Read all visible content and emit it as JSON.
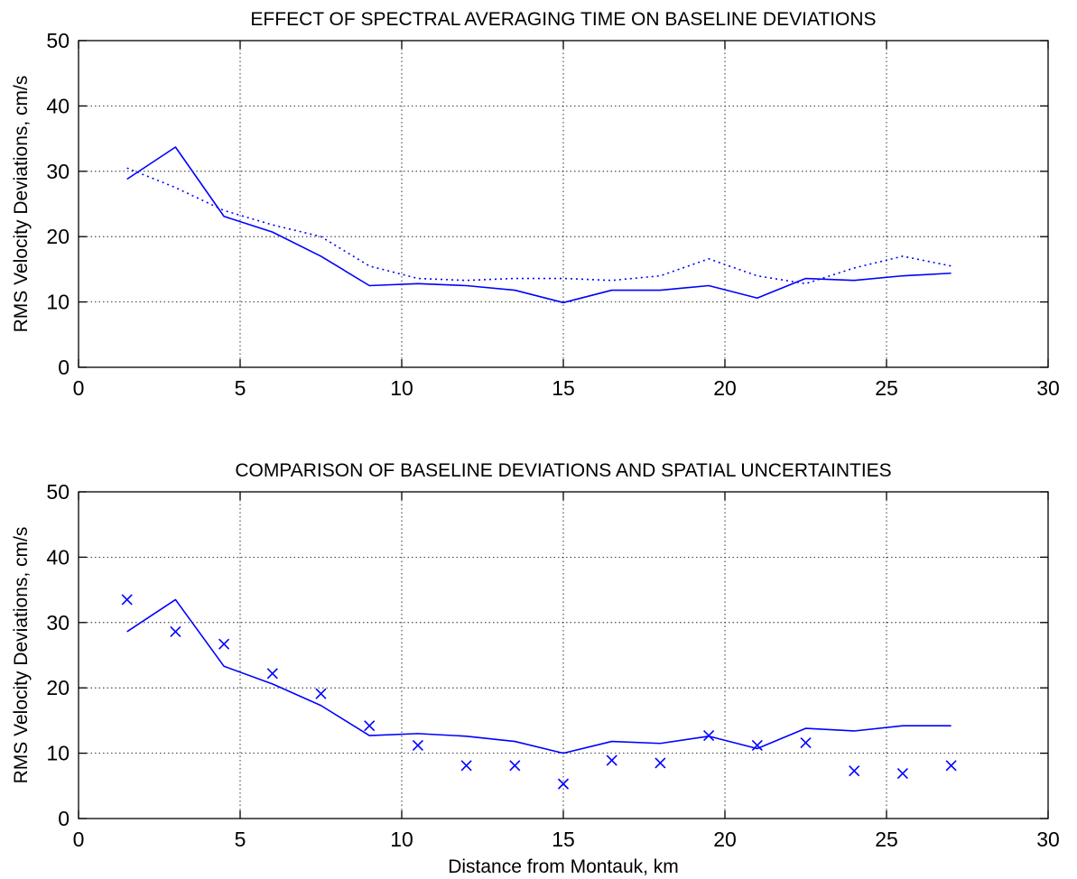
{
  "chart_data": [
    {
      "type": "line",
      "title": "EFFECT OF SPECTRAL AVERAGING TIME ON BASELINE DEVIATIONS",
      "xlabel": "",
      "ylabel": "RMS Velocity Deviations, cm/s",
      "xlim": [
        0,
        30
      ],
      "ylim": [
        0,
        50
      ],
      "xticks": [
        0,
        5,
        10,
        15,
        20,
        25,
        30
      ],
      "yticks": [
        0,
        10,
        20,
        30,
        40,
        50
      ],
      "grid": true,
      "line_color": "#0000ff",
      "series": [
        {
          "style": "solid",
          "x": [
            1.5,
            3.0,
            4.5,
            6.0,
            7.5,
            9.0,
            10.5,
            12.0,
            13.5,
            15.0,
            16.5,
            18.0,
            19.5,
            21.0,
            22.5,
            24.0,
            25.5,
            27.0
          ],
          "y": [
            28.8,
            33.7,
            23.1,
            20.7,
            17.0,
            12.5,
            12.8,
            12.5,
            11.8,
            9.9,
            11.8,
            11.8,
            12.5,
            10.6,
            13.6,
            13.3,
            14.0,
            14.4
          ]
        },
        {
          "style": "dotted",
          "x": [
            1.5,
            3.0,
            4.5,
            6.0,
            7.5,
            9.0,
            10.5,
            12.0,
            13.5,
            15.0,
            16.5,
            18.0,
            19.5,
            21.0,
            22.5,
            24.0,
            25.5,
            27.0
          ],
          "y": [
            30.5,
            27.5,
            24.0,
            21.8,
            20.0,
            15.5,
            13.6,
            13.3,
            13.6,
            13.6,
            13.3,
            14.0,
            16.6,
            14.0,
            12.8,
            15.2,
            17.0,
            15.5
          ]
        }
      ]
    },
    {
      "type": "line",
      "title": "COMPARISON OF BASELINE DEVIATIONS AND SPATIAL UNCERTAINTIES",
      "xlabel": "Distance from Montauk, km",
      "ylabel": "RMS Velocity Deviations, cm/s",
      "xlim": [
        0,
        30
      ],
      "ylim": [
        0,
        50
      ],
      "xticks": [
        0,
        5,
        10,
        15,
        20,
        25,
        30
      ],
      "yticks": [
        0,
        10,
        20,
        30,
        40,
        50
      ],
      "grid": true,
      "line_color": "#0000ff",
      "series": [
        {
          "style": "solid",
          "x": [
            1.5,
            3.0,
            4.5,
            6.0,
            7.5,
            9.0,
            10.5,
            12.0,
            13.5,
            15.0,
            16.5,
            18.0,
            19.5,
            21.0,
            22.5,
            24.0,
            25.5,
            27.0
          ],
          "y": [
            28.6,
            33.5,
            23.3,
            20.6,
            17.3,
            12.7,
            13.0,
            12.6,
            11.8,
            10.0,
            11.8,
            11.5,
            12.6,
            10.7,
            13.8,
            13.4,
            14.2,
            14.2
          ]
        },
        {
          "style": "markers-x",
          "x": [
            1.5,
            3.0,
            4.5,
            6.0,
            7.5,
            9.0,
            10.5,
            12.0,
            13.5,
            15.0,
            16.5,
            18.0,
            19.5,
            21.0,
            22.5,
            24.0,
            25.5,
            27.0
          ],
          "y": [
            33.5,
            28.6,
            26.7,
            22.2,
            19.1,
            14.2,
            11.2,
            8.1,
            8.1,
            5.3,
            8.9,
            8.5,
            12.7,
            11.2,
            11.6,
            7.3,
            6.9,
            8.1
          ]
        }
      ]
    }
  ]
}
